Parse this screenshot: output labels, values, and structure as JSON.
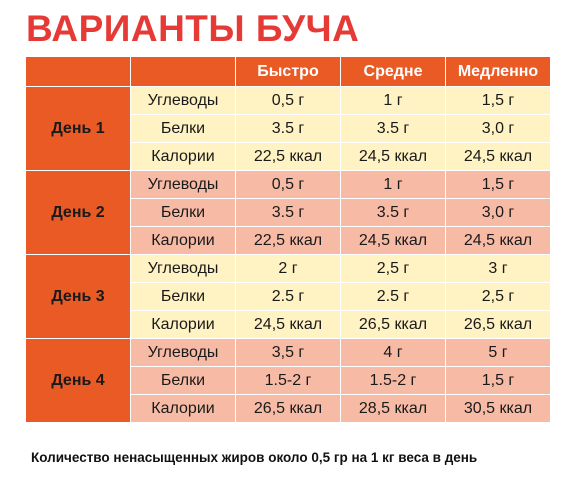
{
  "title": "ВАРИАНТЫ БУЧА",
  "columns": [
    "Быстро",
    "Средне",
    "Медленно"
  ],
  "days": [
    {
      "label": "День 1",
      "rows": [
        {
          "name": "Углеводы",
          "values": [
            "0,5 г",
            "1 г",
            "1,5 г"
          ]
        },
        {
          "name": "Белки",
          "values": [
            "3.5 г",
            "3.5 г",
            "3,0 г"
          ]
        },
        {
          "name": "Калории",
          "values": [
            "22,5 ккал",
            "24,5 ккал",
            "24,5 ккал"
          ]
        }
      ]
    },
    {
      "label": "День 2",
      "rows": [
        {
          "name": "Углеводы",
          "values": [
            "0,5 г",
            "1 г",
            "1,5 г"
          ]
        },
        {
          "name": "Белки",
          "values": [
            "3.5 г",
            "3.5 г",
            "3,0 г"
          ]
        },
        {
          "name": "Калории",
          "values": [
            "22,5 ккал",
            "24,5 ккал",
            "24,5 ккал"
          ]
        }
      ]
    },
    {
      "label": "День 3",
      "rows": [
        {
          "name": "Углеводы",
          "values": [
            "2 г",
            "2,5 г",
            "3 г"
          ]
        },
        {
          "name": "Белки",
          "values": [
            "2.5 г",
            "2.5 г",
            "2,5 г"
          ]
        },
        {
          "name": "Калории",
          "values": [
            "24,5 ккал",
            "26,5 ккал",
            "26,5 ккал"
          ]
        }
      ]
    },
    {
      "label": "День 4",
      "rows": [
        {
          "name": "Углеводы",
          "values": [
            "3,5 г",
            "4 г",
            "5 г"
          ]
        },
        {
          "name": "Белки",
          "values": [
            "1.5-2 г",
            "1.5-2 г",
            "1,5 г"
          ]
        },
        {
          "name": "Калории",
          "values": [
            "26,5 ккал",
            "28,5 ккал",
            "30,5 ккал"
          ]
        }
      ]
    }
  ],
  "footer": "Количество  ненасыщенных жиров около 0,5 гр на 1 кг веса в день",
  "colors": {
    "title": "#e53a35",
    "header": "#ea5a25",
    "row_light": "#fff2c3",
    "row_dark": "#f7bba5"
  }
}
